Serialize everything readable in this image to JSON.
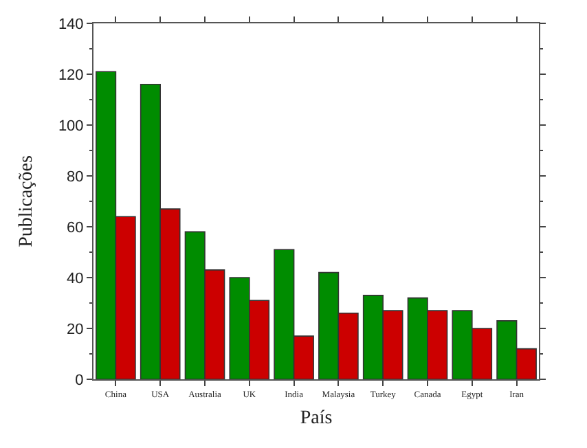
{
  "chart_data": {
    "type": "bar",
    "xlabel": "País",
    "ylabel": "Publicações",
    "categories": [
      "China",
      "USA",
      "Australia",
      "UK",
      "India",
      "Malaysia",
      "Turkey",
      "Canada",
      "Egypt",
      "Iran"
    ],
    "series": [
      {
        "color": "#008c00",
        "values": [
          121,
          116,
          58,
          40,
          51,
          42,
          33,
          32,
          27,
          23
        ]
      },
      {
        "color": "#cc0000",
        "values": [
          64,
          67,
          43,
          31,
          17,
          26,
          27,
          27,
          20,
          12
        ]
      }
    ],
    "ylim": [
      0,
      140
    ],
    "yticks": [
      0,
      20,
      40,
      60,
      80,
      100,
      120,
      140
    ]
  }
}
